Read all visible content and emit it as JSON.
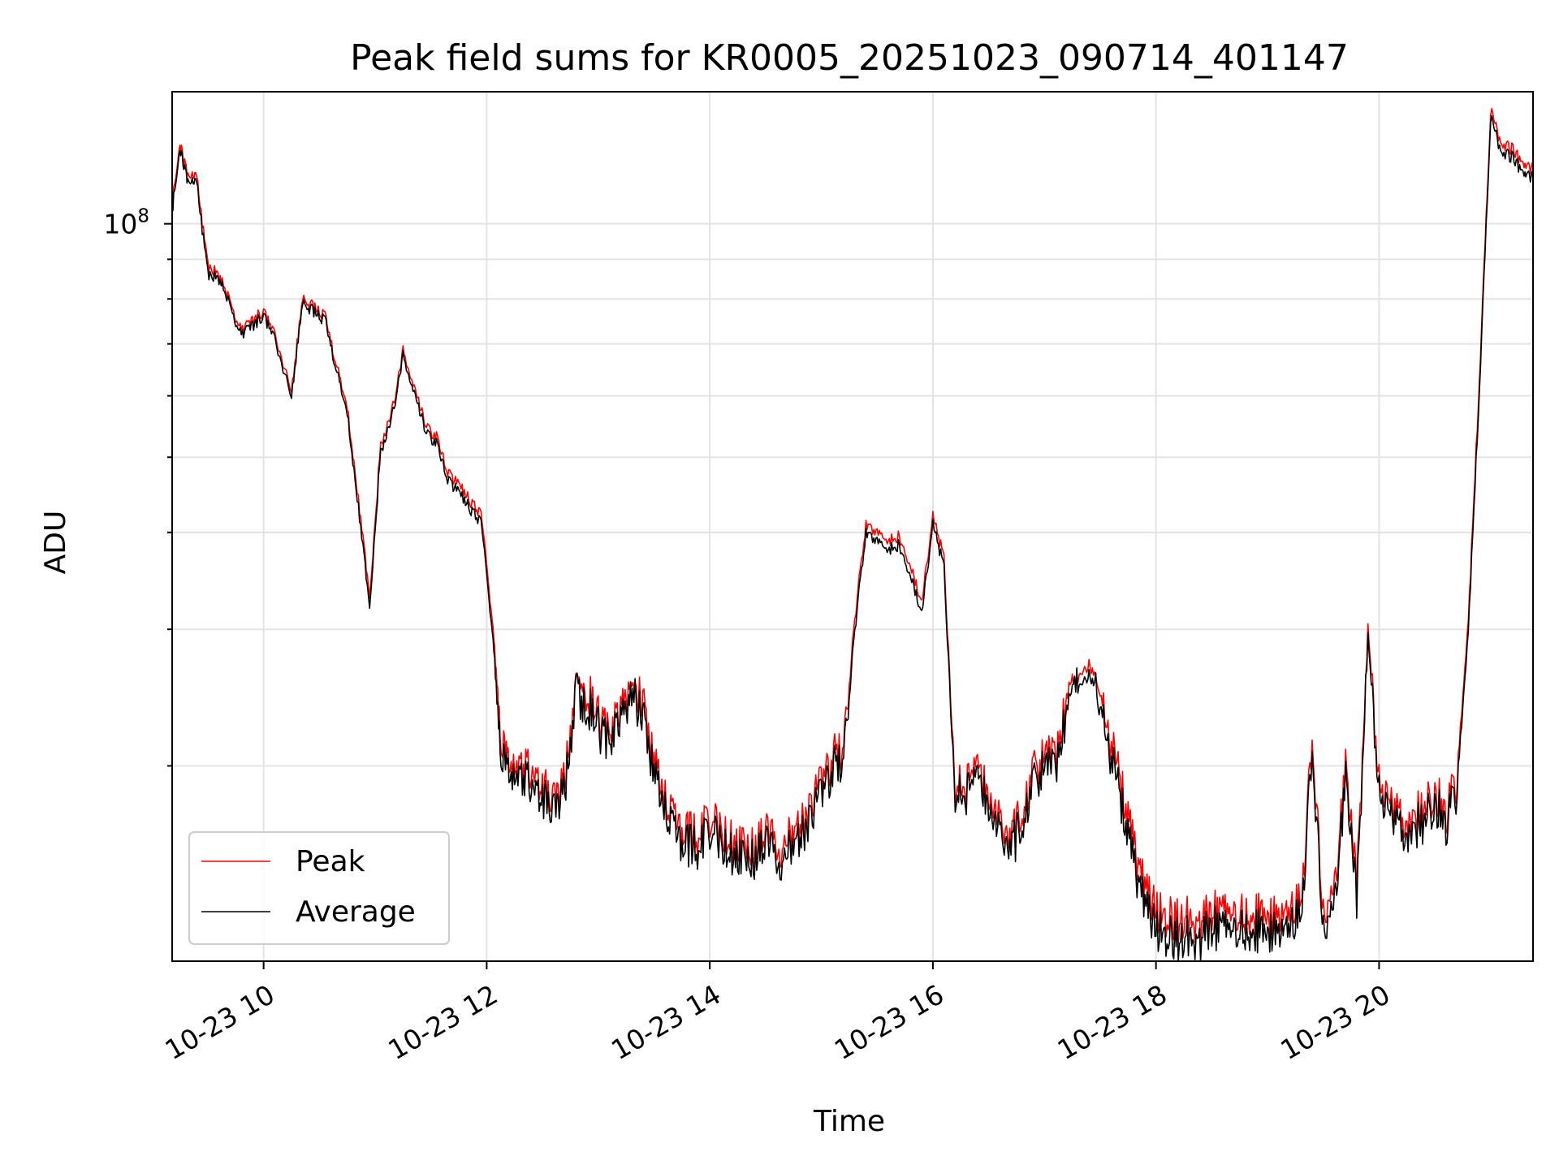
{
  "chart_data": {
    "type": "line",
    "title": "Peak field sums for KR0005_20251023_090714_401147",
    "xlabel": "Time",
    "ylabel": "ADU",
    "yscale": "log",
    "grid": true,
    "legend_position": "lower-left",
    "x_unit": "hours (2025-10-23)",
    "xlim": [
      9.18,
      21.38
    ],
    "ylim": [
      11200000,
      148000000
    ],
    "x_ticks": [
      {
        "value": 10,
        "label": "10-23 10"
      },
      {
        "value": 12,
        "label": "10-23 12"
      },
      {
        "value": 14,
        "label": "10-23 14"
      },
      {
        "value": 16,
        "label": "10-23 16"
      },
      {
        "value": 18,
        "label": "10-23 18"
      },
      {
        "value": 20,
        "label": "10-23 20"
      }
    ],
    "y_ticks": [
      {
        "value": 100000000,
        "base": "10",
        "exp": "8"
      }
    ],
    "colors": {
      "peak": "#ff0000",
      "average": "#000000"
    },
    "x": [
      9.18,
      9.25,
      9.32,
      9.4,
      9.5,
      9.6,
      9.7,
      9.8,
      9.9,
      10.0,
      10.1,
      10.25,
      10.35,
      10.45,
      10.55,
      10.65,
      10.75,
      10.85,
      10.95,
      11.05,
      11.15,
      11.25,
      11.35,
      11.45,
      11.55,
      11.65,
      11.75,
      11.85,
      11.95,
      12.05,
      12.12,
      12.2,
      12.3,
      12.4,
      12.5,
      12.6,
      12.7,
      12.8,
      12.9,
      13.0,
      13.1,
      13.2,
      13.3,
      13.4,
      13.5,
      13.6,
      13.7,
      13.8,
      13.9,
      14.0,
      14.1,
      14.2,
      14.3,
      14.4,
      14.5,
      14.6,
      14.7,
      14.8,
      14.9,
      15.0,
      15.1,
      15.2,
      15.3,
      15.4,
      15.5,
      15.6,
      15.7,
      15.8,
      15.9,
      16.0,
      16.1,
      16.2,
      16.3,
      16.4,
      16.5,
      16.6,
      16.7,
      16.8,
      16.9,
      17.0,
      17.1,
      17.2,
      17.3,
      17.4,
      17.5,
      17.6,
      17.7,
      17.8,
      17.9,
      18.0,
      18.1,
      18.2,
      18.3,
      18.4,
      18.5,
      18.6,
      18.7,
      18.8,
      18.9,
      19.0,
      19.1,
      19.2,
      19.3,
      19.4,
      19.5,
      19.6,
      19.7,
      19.8,
      19.9,
      20.0,
      20.1,
      20.2,
      20.3,
      20.4,
      20.5,
      20.6,
      20.7,
      20.8,
      20.9,
      21.0,
      21.1,
      21.2,
      21.3,
      21.38
    ],
    "series": [
      {
        "name": "Peak",
        "values": [
          106000000,
          127000000,
          115000000,
          115000000,
          88000000,
          86000000,
          79000000,
          73000000,
          75000000,
          77000000,
          72000000,
          61000000,
          80000000,
          78000000,
          76000000,
          66000000,
          58000000,
          44000000,
          33000000,
          52000000,
          57000000,
          69000000,
          62000000,
          55000000,
          53000000,
          48000000,
          46000000,
          44000000,
          42000000,
          31000000,
          22500000,
          20200000,
          20100000,
          20000000,
          18800000,
          18500000,
          19000000,
          26000000,
          25000000,
          23000000,
          22000000,
          24000000,
          25500000,
          24500000,
          20200000,
          18000000,
          16800000,
          16500000,
          16200000,
          17000000,
          16500000,
          16100000,
          15800000,
          15500000,
          16800000,
          15700000,
          16000000,
          16500000,
          17500000,
          19000000,
          20500000,
          21000000,
          31000000,
          41000000,
          40000000,
          39000000,
          39500000,
          36000000,
          32500000,
          42000000,
          37000000,
          18600000,
          19000000,
          19500000,
          18800000,
          17000000,
          16000000,
          17500000,
          19500000,
          20500000,
          20500000,
          24000000,
          26000000,
          27000000,
          25000000,
          21500000,
          18500000,
          15700000,
          13900000,
          13000000,
          12700000,
          12600000,
          12800000,
          12500000,
          13000000,
          12900000,
          12800000,
          13000000,
          12900000,
          12800000,
          13100000,
          13200000,
          13300000,
          21500000,
          12800000,
          13600000,
          20000000,
          13800000,
          30000000,
          19000000,
          18000000,
          17000000,
          17100000,
          17600000,
          18500000,
          17500000,
          19000000,
          31000000,
          63000000,
          140000000,
          126000000,
          125000000,
          118000000,
          118000000
        ]
      },
      {
        "name": "Average",
        "values": [
          104000000,
          125000000,
          113000000,
          113000000,
          86000000,
          85000000,
          78000000,
          72000000,
          74000000,
          76000000,
          71000000,
          60000000,
          79000000,
          77000000,
          75000000,
          65000000,
          57000000,
          43000000,
          32000000,
          51000000,
          56000000,
          68000000,
          61000000,
          54000000,
          52000000,
          47000000,
          45000000,
          43000000,
          41000000,
          30000000,
          21500000,
          19600000,
          19500000,
          19200000,
          18200000,
          17900000,
          18400000,
          25000000,
          24000000,
          22300000,
          21400000,
          23300000,
          24500000,
          23500000,
          19500000,
          17400000,
          16200000,
          15900000,
          15600000,
          16400000,
          15900000,
          15500000,
          15200000,
          15000000,
          16200000,
          15100000,
          15400000,
          15900000,
          16900000,
          18300000,
          19800000,
          20300000,
          30000000,
          40000000,
          39000000,
          38000000,
          38500000,
          35000000,
          31500000,
          41000000,
          36000000,
          18100000,
          18500000,
          18900000,
          18200000,
          16400000,
          15500000,
          16900000,
          18800000,
          19800000,
          19800000,
          23200000,
          25200000,
          26200000,
          24200000,
          20600000,
          17600000,
          14900000,
          13200000,
          12300000,
          12000000,
          11900000,
          12100000,
          11900000,
          12400000,
          12300000,
          12200000,
          12400000,
          12300000,
          12200000,
          12500000,
          12600000,
          12700000,
          20800000,
          12200000,
          13000000,
          19300000,
          13200000,
          29200000,
          18400000,
          17400000,
          16400000,
          16500000,
          17000000,
          17900000,
          16900000,
          18400000,
          30000000,
          61000000,
          137000000,
          123000000,
          122000000,
          115000000,
          115000000
        ]
      }
    ]
  }
}
